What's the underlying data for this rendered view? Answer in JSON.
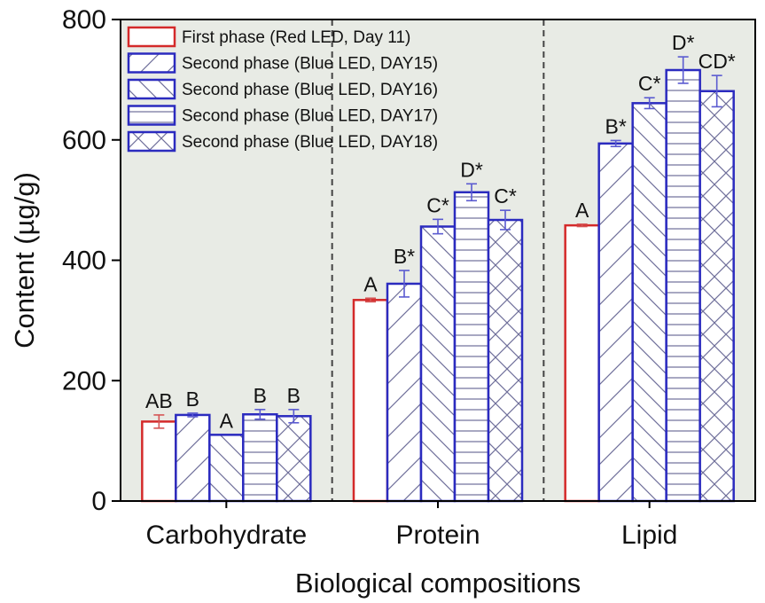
{
  "chart_data": {
    "type": "bar",
    "title": "",
    "xlabel": "Biological compositions",
    "ylabel": "Content (µg/g)",
    "ylim": [
      0,
      800
    ],
    "yticks": [
      0,
      200,
      400,
      600,
      800
    ],
    "grid": false,
    "legend_position": "top-left",
    "background_color": "#e8ebe5",
    "categories": [
      "Carbohydrate",
      "Protein",
      "Lipid"
    ],
    "series": [
      {
        "name": "First phase (Red LED, Day 11)",
        "color": "#d42a2a",
        "pattern": "none",
        "values": [
          132,
          334,
          458
        ],
        "errors": [
          11,
          3,
          2
        ],
        "labels": [
          "AB",
          "A",
          "A"
        ]
      },
      {
        "name": "Second phase (Blue LED, DAY15)",
        "color": "#2b2bbf",
        "pattern": "forward-diagonal",
        "values": [
          143,
          361,
          594
        ],
        "errors": [
          3,
          22,
          5
        ],
        "labels": [
          "B",
          "B*",
          "B*"
        ]
      },
      {
        "name": "Second phase (Blue LED, DAY16)",
        "color": "#2b2bbf",
        "pattern": "back-diagonal",
        "values": [
          110,
          456,
          661
        ],
        "errors": [
          0,
          12,
          9
        ],
        "labels": [
          "A",
          "C*",
          "C*"
        ]
      },
      {
        "name": "Second phase (Blue LED, DAY17)",
        "color": "#2b2bbf",
        "pattern": "horizontal",
        "values": [
          144,
          513,
          716
        ],
        "errors": [
          8,
          14,
          22
        ],
        "labels": [
          "B",
          "D*",
          "D*"
        ]
      },
      {
        "name": "Second phase (Blue LED, DAY18)",
        "color": "#2b2bbf",
        "pattern": "cross",
        "values": [
          141,
          467,
          681
        ],
        "errors": [
          11,
          16,
          26
        ],
        "labels": [
          "B",
          "C*",
          "CD*"
        ]
      }
    ]
  }
}
